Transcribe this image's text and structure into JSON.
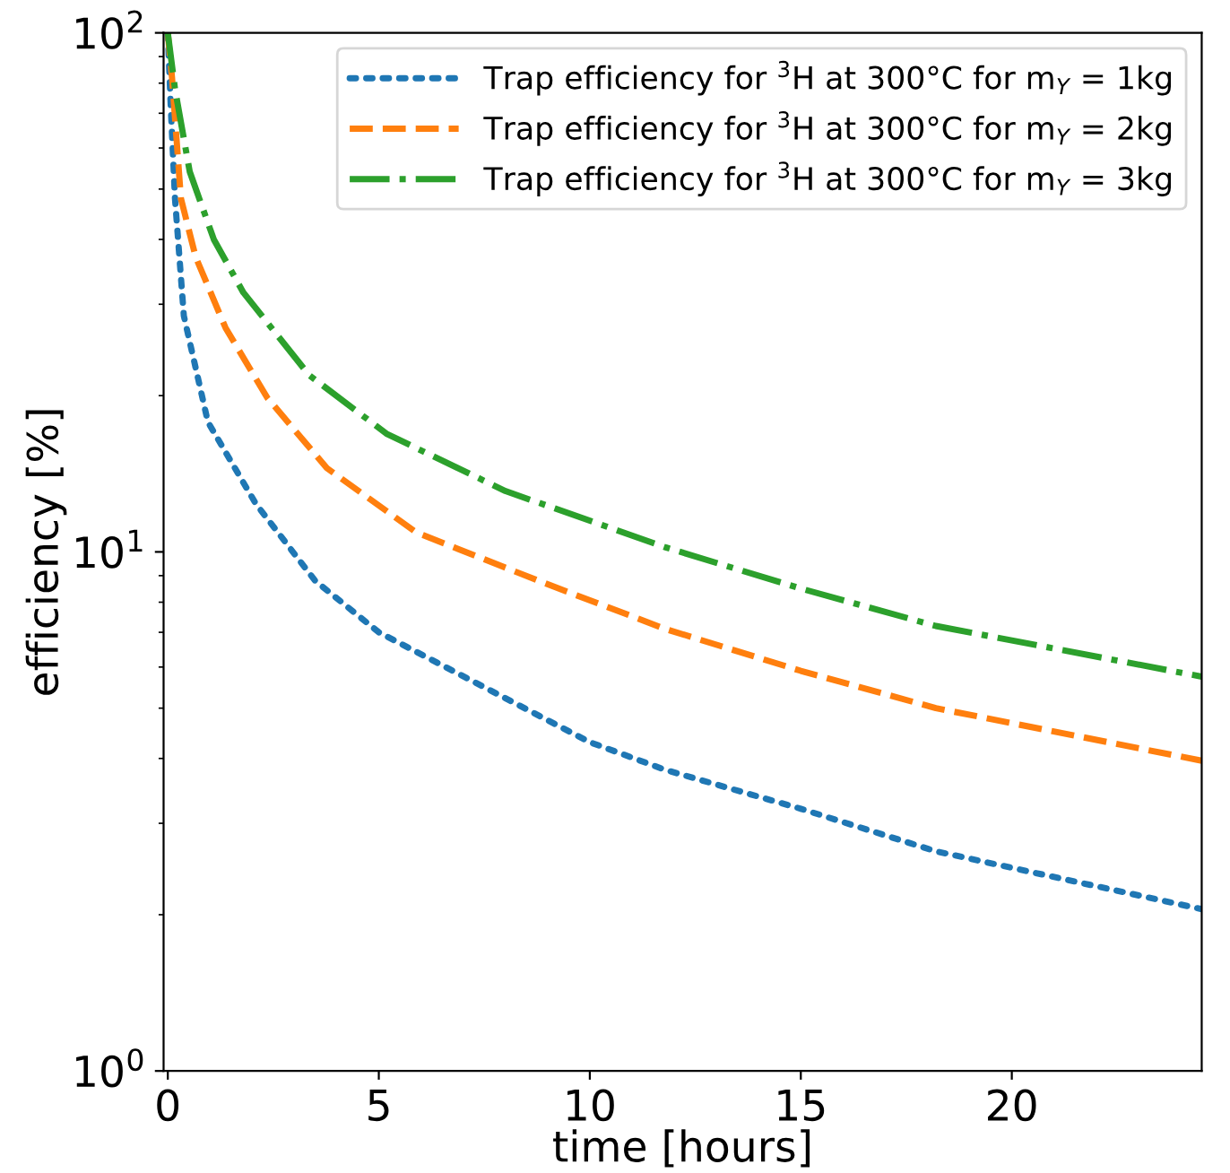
{
  "chart_data": {
    "type": "line",
    "xlabel": "time [hours]",
    "ylabel": "efficiency [%]",
    "log": "y",
    "xlim": [
      -0.1,
      24.5
    ],
    "ylim": [
      1,
      100
    ],
    "xticks": [
      0,
      5,
      10,
      15,
      20
    ],
    "yticks": [
      {
        "value": 1,
        "label": "10$^{0}$"
      },
      {
        "value": 10,
        "label": "10$^{1}$"
      },
      {
        "value": 100,
        "label": "10$^{2}$"
      }
    ],
    "grid": false,
    "legend": "top right",
    "series": [
      {
        "name": "Trap efficiency for $^{3}$H at 300°C for m$_{Y}$ = 1kg",
        "color": "#1f77b4",
        "line_style": "dotted",
        "x": [
          0,
          0.07,
          0.17,
          0.38,
          0.95,
          2.08,
          3.49,
          5,
          10,
          11.8,
          15,
          18.2,
          24.5
        ],
        "values": [
          100,
          72,
          48,
          28.5,
          17.8,
          12.4,
          8.8,
          7.0,
          4.3,
          3.8,
          3.2,
          2.65,
          2.05
        ]
      },
      {
        "name": "Trap efficiency for $^{3}$H at 300°C for m$_{Y}$ = 2kg",
        "color": "#ff7f0e",
        "line_style": "dashed",
        "x": [
          0,
          0.1,
          0.31,
          0.66,
          1.37,
          2.36,
          3.77,
          5.89,
          8.86,
          11.8,
          15,
          18.2,
          24.5
        ],
        "values": [
          100,
          82,
          48,
          37,
          27,
          19.8,
          14.5,
          10.9,
          8.75,
          7.1,
          5.9,
          5.0,
          3.96
        ]
      },
      {
        "name": "Trap efficiency for $^{3}$H at 300°C for m$_{Y}$ = 3kg",
        "color": "#2ca02c",
        "line_style": "dashdot",
        "x": [
          0,
          0.17,
          0.52,
          1.09,
          1.79,
          3.35,
          5.18,
          8.0,
          11.8,
          15,
          18.2,
          24.5
        ],
        "values": [
          100,
          78,
          54,
          40,
          31.6,
          21.9,
          16.9,
          13.1,
          10.2,
          8.5,
          7.2,
          5.75
        ]
      }
    ]
  }
}
